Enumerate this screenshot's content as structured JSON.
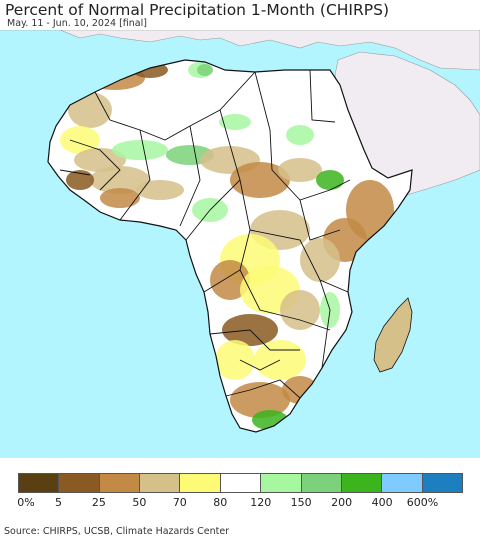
{
  "header": {
    "title": "Percent of Normal Precipitation 1-Month (CHIRPS)",
    "subtitle": "May. 11 - Jun. 10, 2024 [final]"
  },
  "map": {
    "ocean_color": "#b3f5ff",
    "land_outside_color": "#f0ecf2",
    "border_color": "#111111"
  },
  "legend": {
    "colors": [
      "#5a3f12",
      "#8a5a22",
      "#c28a45",
      "#d6c08a",
      "#fdfb75",
      "#ffffff",
      "#a6f7a0",
      "#7bd27a",
      "#3bb41e",
      "#7fcaff",
      "#1e7fc0"
    ],
    "labels": [
      "0%",
      "5",
      "25",
      "50",
      "70",
      "80",
      "120",
      "150",
      "200",
      "400",
      "600%"
    ]
  },
  "footer": {
    "source": "Source: CHIRPS, UCSB, Climate Hazards Center"
  }
}
